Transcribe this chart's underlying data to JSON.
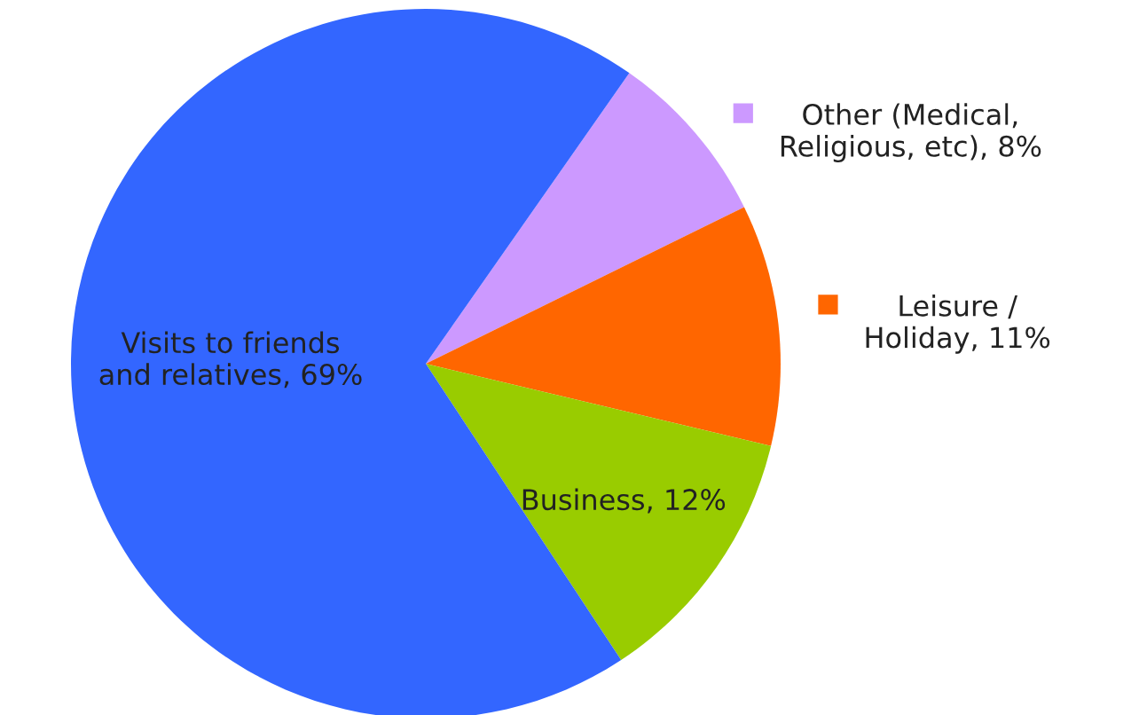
{
  "chart_data": {
    "type": "pie",
    "categories": [
      "Other (Medical, Religious, etc)",
      "Leisure / Holiday",
      "Business",
      "Visits to friends and relatives"
    ],
    "values": [
      8,
      11,
      12,
      69
    ],
    "value_labels": [
      "8%",
      "11%",
      "12%",
      "69%"
    ],
    "legend": "right",
    "colors": [
      "#cc99ff",
      "#ff6600",
      "#99cc00",
      "#3366ff"
    ]
  }
}
